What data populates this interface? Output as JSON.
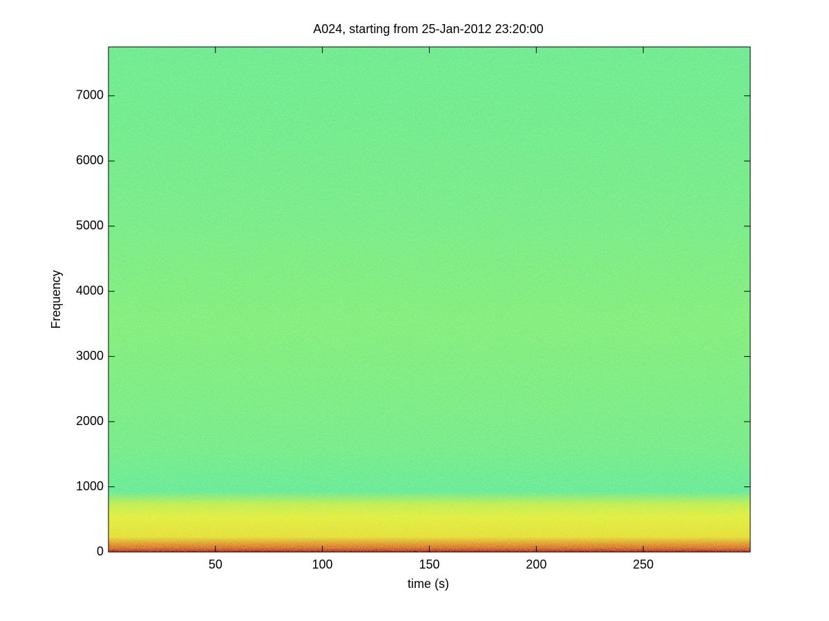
{
  "chart_data": {
    "type": "spectrogram",
    "title": "A024, starting from 25-Jan-2012 23:20:00",
    "x_label": "time (s)",
    "y_label": "Frequency",
    "xlim": [
      0,
      300
    ],
    "xticks": [
      50,
      100,
      150,
      200,
      250
    ],
    "ylim": [
      0,
      7750
    ],
    "yticks": [
      0,
      1000,
      2000,
      3000,
      4000,
      5000,
      6000,
      7000
    ],
    "colormap": "jet",
    "grid": false
  }
}
